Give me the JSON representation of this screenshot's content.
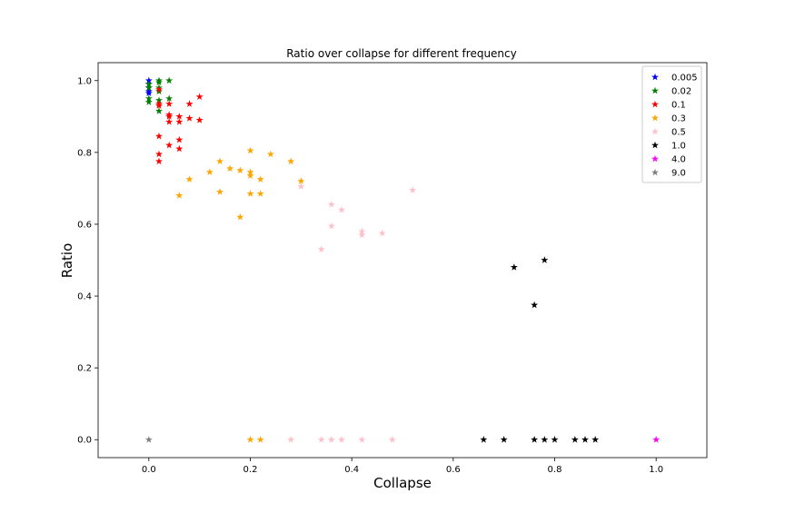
{
  "chart_data": {
    "type": "scatter",
    "title": "Ratio over collapse for different frequency",
    "xlabel": "Collapse",
    "ylabel": "Ratio",
    "xlim": [
      -0.1,
      1.1
    ],
    "ylim": [
      -0.05,
      1.05
    ],
    "xticks": [
      "0.0",
      "0.2",
      "0.4",
      "0.6",
      "0.8",
      "1.0"
    ],
    "yticks": [
      "0.0",
      "0.2",
      "0.4",
      "0.6",
      "0.8",
      "1.0"
    ],
    "grid": false,
    "legend_position": "top-right",
    "marker": "star",
    "series": [
      {
        "name": "0.005",
        "color": "#0000ff",
        "points": [
          [
            0.0,
            1.0
          ],
          [
            0.0,
            0.99
          ],
          [
            0.0,
            0.98
          ],
          [
            0.0,
            0.97
          ],
          [
            0.0,
            0.965
          ]
        ]
      },
      {
        "name": "0.02",
        "color": "#008000",
        "points": [
          [
            0.0,
            0.99
          ],
          [
            0.0,
            0.98
          ],
          [
            0.0,
            0.95
          ],
          [
            0.0,
            0.94
          ],
          [
            0.02,
            1.0
          ],
          [
            0.02,
            0.995
          ],
          [
            0.02,
            0.98
          ],
          [
            0.02,
            0.97
          ],
          [
            0.02,
            0.945
          ],
          [
            0.02,
            0.915
          ],
          [
            0.04,
            1.0
          ],
          [
            0.04,
            0.95
          ]
        ]
      },
      {
        "name": "0.1",
        "color": "#ff0000",
        "points": [
          [
            0.02,
            0.975
          ],
          [
            0.02,
            0.935
          ],
          [
            0.02,
            0.93
          ],
          [
            0.02,
            0.845
          ],
          [
            0.02,
            0.795
          ],
          [
            0.02,
            0.775
          ],
          [
            0.04,
            0.935
          ],
          [
            0.04,
            0.905
          ],
          [
            0.04,
            0.9
          ],
          [
            0.04,
            0.885
          ],
          [
            0.04,
            0.82
          ],
          [
            0.06,
            0.9
          ],
          [
            0.06,
            0.885
          ],
          [
            0.06,
            0.835
          ],
          [
            0.06,
            0.81
          ],
          [
            0.08,
            0.935
          ],
          [
            0.08,
            0.895
          ],
          [
            0.1,
            0.955
          ],
          [
            0.1,
            0.89
          ]
        ]
      },
      {
        "name": "0.3",
        "color": "#ffa500",
        "points": [
          [
            0.06,
            0.68
          ],
          [
            0.08,
            0.725
          ],
          [
            0.12,
            0.745
          ],
          [
            0.14,
            0.775
          ],
          [
            0.14,
            0.69
          ],
          [
            0.16,
            0.755
          ],
          [
            0.18,
            0.75
          ],
          [
            0.18,
            0.62
          ],
          [
            0.2,
            0.805
          ],
          [
            0.2,
            0.745
          ],
          [
            0.2,
            0.735
          ],
          [
            0.2,
            0.685
          ],
          [
            0.22,
            0.725
          ],
          [
            0.22,
            0.685
          ],
          [
            0.24,
            0.795
          ],
          [
            0.28,
            0.775
          ],
          [
            0.3,
            0.72
          ],
          [
            0.2,
            0.0
          ],
          [
            0.22,
            0.0
          ]
        ]
      },
      {
        "name": "0.5",
        "color": "#ffc0cb",
        "points": [
          [
            0.3,
            0.705
          ],
          [
            0.34,
            0.53
          ],
          [
            0.36,
            0.655
          ],
          [
            0.36,
            0.595
          ],
          [
            0.38,
            0.64
          ],
          [
            0.42,
            0.58
          ],
          [
            0.42,
            0.57
          ],
          [
            0.46,
            0.575
          ],
          [
            0.52,
            0.695
          ],
          [
            0.28,
            0.0
          ],
          [
            0.34,
            0.0
          ],
          [
            0.36,
            0.0
          ],
          [
            0.38,
            0.0
          ],
          [
            0.42,
            0.0
          ],
          [
            0.48,
            0.0
          ]
        ]
      },
      {
        "name": "1.0",
        "color": "#000000",
        "points": [
          [
            0.72,
            0.48
          ],
          [
            0.78,
            0.5
          ],
          [
            0.76,
            0.375
          ],
          [
            0.66,
            0.0
          ],
          [
            0.7,
            0.0
          ],
          [
            0.76,
            0.0
          ],
          [
            0.78,
            0.0
          ],
          [
            0.8,
            0.0
          ],
          [
            0.84,
            0.0
          ],
          [
            0.86,
            0.0
          ],
          [
            0.88,
            0.0
          ]
        ]
      },
      {
        "name": "4.0",
        "color": "#ff00ff",
        "points": [
          [
            1.0,
            0.0
          ]
        ]
      },
      {
        "name": "9.0",
        "color": "#808080",
        "points": [
          [
            0.0,
            0.0
          ]
        ]
      }
    ]
  }
}
